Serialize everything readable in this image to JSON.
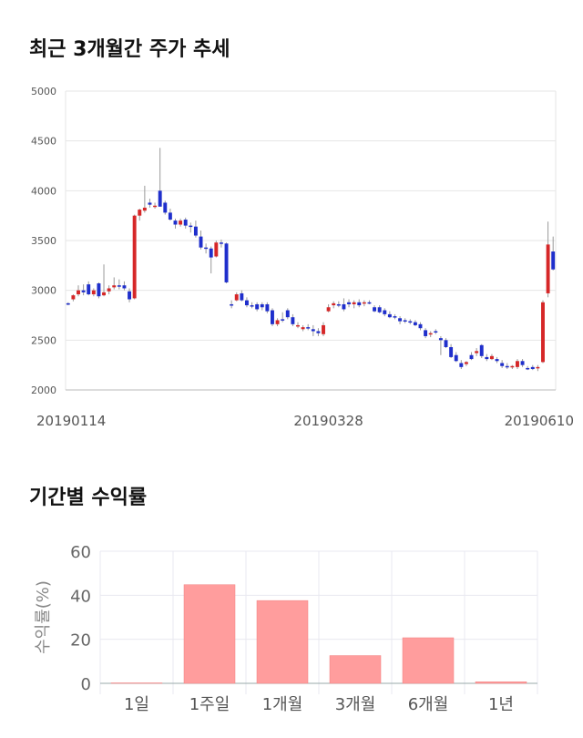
{
  "section1": {
    "title": "최근 3개월간 주가 추세"
  },
  "section2": {
    "title": "기간별 수익률"
  },
  "chart_data": [
    {
      "type": "candlestick",
      "yticks": [
        5000,
        4500,
        4000,
        3500,
        3000,
        2500,
        2000
      ],
      "ylim": [
        2000,
        5000
      ],
      "xtick_labels": [
        "20190114",
        "20190328",
        "20190610"
      ],
      "xtick_index": [
        0,
        51,
        97
      ],
      "up_color": "#d62728",
      "down_color": "#1f2fcc",
      "candles": [
        [
          2870,
          2880,
          2850,
          2860
        ],
        [
          2910,
          2960,
          2890,
          2950
        ],
        [
          2960,
          3050,
          2940,
          3000
        ],
        [
          3000,
          3060,
          2950,
          2980
        ],
        [
          3060,
          3090,
          2950,
          2960
        ],
        [
          2960,
          3020,
          2940,
          3000
        ],
        [
          3070,
          3080,
          2920,
          2940
        ],
        [
          2950,
          3260,
          2940,
          2980
        ],
        [
          2990,
          3050,
          2960,
          3020
        ],
        [
          3030,
          3130,
          3010,
          3050
        ],
        [
          3050,
          3110,
          3010,
          3040
        ],
        [
          3050,
          3090,
          3000,
          3020
        ],
        [
          2990,
          3020,
          2880,
          2910
        ],
        [
          2920,
          3760,
          2910,
          3750
        ],
        [
          3750,
          3820,
          3700,
          3810
        ],
        [
          3800,
          4050,
          3780,
          3830
        ],
        [
          3880,
          3920,
          3830,
          3860
        ],
        [
          3850,
          3880,
          3820,
          3850
        ],
        [
          4000,
          4430,
          3850,
          3840
        ],
        [
          3880,
          3900,
          3760,
          3780
        ],
        [
          3780,
          3820,
          3700,
          3710
        ],
        [
          3700,
          3720,
          3620,
          3660
        ],
        [
          3660,
          3720,
          3640,
          3700
        ],
        [
          3710,
          3730,
          3620,
          3650
        ],
        [
          3650,
          3680,
          3580,
          3640
        ],
        [
          3640,
          3700,
          3530,
          3550
        ],
        [
          3540,
          3600,
          3410,
          3430
        ],
        [
          3430,
          3470,
          3370,
          3420
        ],
        [
          3420,
          3440,
          3170,
          3330
        ],
        [
          3340,
          3500,
          3330,
          3480
        ],
        [
          3480,
          3510,
          3430,
          3470
        ],
        [
          3470,
          3480,
          3070,
          3080
        ],
        [
          2860,
          2900,
          2820,
          2850
        ],
        [
          2900,
          2980,
          2890,
          2960
        ],
        [
          2970,
          3000,
          2890,
          2900
        ],
        [
          2900,
          2930,
          2830,
          2850
        ],
        [
          2850,
          2880,
          2820,
          2840
        ],
        [
          2860,
          2880,
          2790,
          2810
        ],
        [
          2860,
          2880,
          2800,
          2830
        ],
        [
          2860,
          2880,
          2770,
          2790
        ],
        [
          2800,
          2820,
          2640,
          2660
        ],
        [
          2660,
          2720,
          2640,
          2700
        ],
        [
          2710,
          2780,
          2680,
          2700
        ],
        [
          2800,
          2820,
          2710,
          2730
        ],
        [
          2730,
          2760,
          2640,
          2660
        ],
        [
          2640,
          2680,
          2620,
          2650
        ],
        [
          2610,
          2650,
          2590,
          2630
        ],
        [
          2630,
          2660,
          2600,
          2620
        ],
        [
          2610,
          2650,
          2540,
          2590
        ],
        [
          2590,
          2620,
          2540,
          2570
        ],
        [
          2560,
          2680,
          2540,
          2650
        ],
        [
          2790,
          2860,
          2780,
          2830
        ],
        [
          2850,
          2890,
          2820,
          2870
        ],
        [
          2860,
          2890,
          2830,
          2850
        ],
        [
          2860,
          2920,
          2790,
          2810
        ],
        [
          2880,
          2910,
          2830,
          2860
        ],
        [
          2860,
          2900,
          2820,
          2880
        ],
        [
          2880,
          2910,
          2830,
          2850
        ],
        [
          2870,
          2900,
          2840,
          2880
        ],
        [
          2880,
          2900,
          2860,
          2870
        ],
        [
          2830,
          2850,
          2780,
          2790
        ],
        [
          2830,
          2850,
          2770,
          2780
        ],
        [
          2800,
          2820,
          2740,
          2760
        ],
        [
          2760,
          2790,
          2720,
          2730
        ],
        [
          2740,
          2760,
          2710,
          2730
        ],
        [
          2720,
          2740,
          2660,
          2690
        ],
        [
          2700,
          2720,
          2670,
          2690
        ],
        [
          2690,
          2710,
          2660,
          2680
        ],
        [
          2680,
          2700,
          2640,
          2650
        ],
        [
          2660,
          2680,
          2600,
          2620
        ],
        [
          2600,
          2620,
          2520,
          2540
        ],
        [
          2560,
          2590,
          2530,
          2570
        ],
        [
          2590,
          2610,
          2560,
          2580
        ],
        [
          2520,
          2540,
          2350,
          2500
        ],
        [
          2500,
          2520,
          2420,
          2430
        ],
        [
          2430,
          2460,
          2320,
          2330
        ],
        [
          2350,
          2380,
          2280,
          2290
        ],
        [
          2270,
          2300,
          2210,
          2230
        ],
        [
          2260,
          2290,
          2240,
          2280
        ],
        [
          2350,
          2380,
          2300,
          2310
        ],
        [
          2370,
          2420,
          2340,
          2390
        ],
        [
          2450,
          2460,
          2320,
          2340
        ],
        [
          2330,
          2360,
          2290,
          2310
        ],
        [
          2310,
          2360,
          2300,
          2340
        ],
        [
          2310,
          2330,
          2270,
          2290
        ],
        [
          2270,
          2300,
          2220,
          2240
        ],
        [
          2240,
          2270,
          2210,
          2230
        ],
        [
          2230,
          2250,
          2210,
          2240
        ],
        [
          2230,
          2310,
          2210,
          2290
        ],
        [
          2290,
          2310,
          2230,
          2250
        ],
        [
          2220,
          2240,
          2200,
          2210
        ],
        [
          2230,
          2250,
          2200,
          2210
        ],
        [
          2220,
          2250,
          2190,
          2230
        ],
        [
          2280,
          2900,
          2270,
          2880
        ],
        [
          2970,
          3690,
          2930,
          3460
        ],
        [
          3390,
          3540,
          3200,
          3210
        ]
      ]
    },
    {
      "type": "bar",
      "ylabel": "수익률(%)",
      "yticks": [
        60,
        40,
        20,
        0
      ],
      "ylim": [
        0,
        60
      ],
      "categories": [
        "1일",
        "1주일",
        "1개월",
        "3개월",
        "6개월",
        "1년"
      ],
      "values": [
        0.2,
        44.8,
        37.6,
        12.6,
        20.7,
        0.7
      ],
      "bar_color": "#ff9d9d"
    }
  ]
}
